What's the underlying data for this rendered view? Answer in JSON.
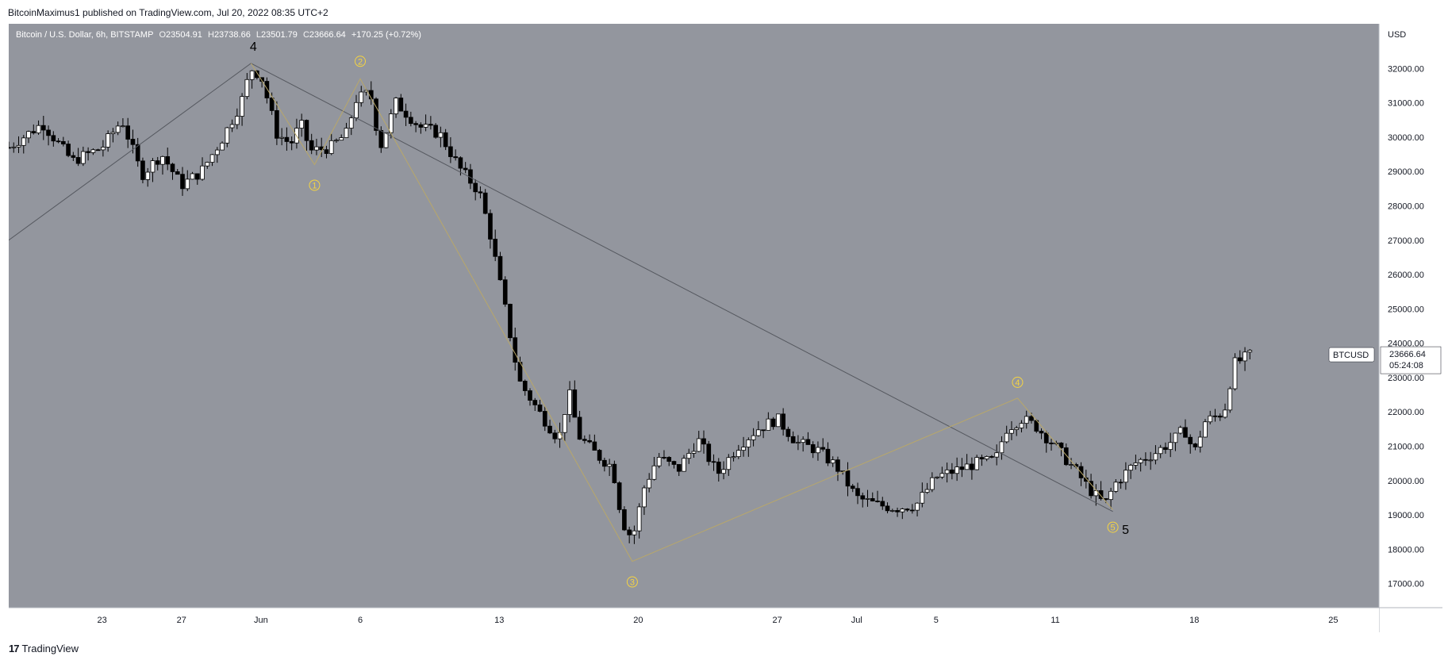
{
  "header": {
    "publish_line": "BitcoinMaximus1 published on TradingView.com, Jul 20, 2022 08:35 UTC+2"
  },
  "legend": {
    "symbol": "Bitcoin / U.S. Dollar, 6h, BITSTAMP",
    "o_label": "O",
    "o_value": "23504.91",
    "h_label": "H",
    "h_value": "23738.66",
    "l_label": "L",
    "l_value": "23501.79",
    "c_label": "C",
    "c_value": "23666.64",
    "change": "+170.25 (+0.72%)"
  },
  "footer": {
    "brand": "TradingView",
    "logo_glyph": "17"
  },
  "colors": {
    "plot_bg": "#93969e",
    "candle_up": "#ffffff",
    "candle_down": "#000000",
    "wave_line_gray": "#55585f",
    "wave_line_yellow": "#b8a76a",
    "wave_marker": "#f5d442",
    "axis_bg": "#ffffff"
  },
  "chart_data": {
    "type": "candlestick",
    "symbol": "Bitcoin / U.S. Dollar",
    "interval": "6h",
    "exchange": "BITSTAMP",
    "currency_label": "USD",
    "y_ticks": [
      17000,
      18000,
      19000,
      20000,
      21000,
      22000,
      23000,
      24000,
      25000,
      26000,
      27000,
      28000,
      29000,
      30000,
      31000,
      32000
    ],
    "y_tick_labels": [
      "17000.00",
      "18000.00",
      "19000.00",
      "20000.00",
      "21000.00",
      "22000.00",
      "23000.00",
      "24000.00",
      "25000.00",
      "26000.00",
      "27000.00",
      "28000.00",
      "29000.00",
      "30000.00",
      "31000.00",
      "32000.00"
    ],
    "ylim": [
      16300,
      33300
    ],
    "x_range_days": [
      -12.7,
      56.3
    ],
    "x_ticks": [
      {
        "day": -8,
        "label": "23"
      },
      {
        "day": -4,
        "label": "27"
      },
      {
        "day": 0,
        "label": "Jun"
      },
      {
        "day": 5,
        "label": "6"
      },
      {
        "day": 12,
        "label": "13"
      },
      {
        "day": 19,
        "label": "20"
      },
      {
        "day": 26,
        "label": "27"
      },
      {
        "day": 30,
        "label": "Jul"
      },
      {
        "day": 34,
        "label": "5"
      },
      {
        "day": 40,
        "label": "11"
      },
      {
        "day": 47,
        "label": "18"
      },
      {
        "day": 54,
        "label": "25"
      }
    ],
    "price_tag": {
      "symbol_label": "BTCUSD",
      "price": "23666.64",
      "countdown": "05:24:08",
      "value": 23666.64
    },
    "path_anchors": [
      [
        -12.7,
        29700
      ],
      [
        -11,
        30400
      ],
      [
        -9.5,
        29300
      ],
      [
        -8,
        29700
      ],
      [
        -7,
        30500
      ],
      [
        -6,
        28900
      ],
      [
        -5,
        29500
      ],
      [
        -4,
        28600
      ],
      [
        -3,
        29000
      ],
      [
        -2,
        29900
      ],
      [
        -1,
        31000
      ],
      [
        -0.5,
        32000
      ],
      [
        0,
        31800
      ],
      [
        0.8,
        30100
      ],
      [
        1.5,
        29800
      ],
      [
        2,
        30400
      ],
      [
        2.5,
        29600
      ],
      [
        3.5,
        29700
      ],
      [
        4.3,
        30100
      ],
      [
        4.8,
        31100
      ],
      [
        5.5,
        31300
      ],
      [
        6,
        29700
      ],
      [
        6.8,
        31000
      ],
      [
        8,
        30300
      ],
      [
        9,
        30100
      ],
      [
        10,
        29100
      ],
      [
        11,
        28400
      ],
      [
        11.5,
        27300
      ],
      [
        12.3,
        25000
      ],
      [
        13,
        22900
      ],
      [
        14,
        22000
      ],
      [
        15,
        21200
      ],
      [
        15.5,
        22600
      ],
      [
        16,
        21300
      ],
      [
        17,
        20700
      ],
      [
        17.7,
        20400
      ],
      [
        18.2,
        18800
      ],
      [
        18.7,
        18300
      ],
      [
        19.3,
        19800
      ],
      [
        20,
        20700
      ],
      [
        21,
        20300
      ],
      [
        22,
        21200
      ],
      [
        23,
        20200
      ],
      [
        24,
        21000
      ],
      [
        25,
        21500
      ],
      [
        26,
        21800
      ],
      [
        27,
        21100
      ],
      [
        28,
        20900
      ],
      [
        29,
        20400
      ],
      [
        30,
        19500
      ],
      [
        31,
        19300
      ],
      [
        32,
        19200
      ],
      [
        33,
        19300
      ],
      [
        34,
        20100
      ],
      [
        35,
        20300
      ],
      [
        36,
        20500
      ],
      [
        37,
        20600
      ],
      [
        37.5,
        21500
      ],
      [
        38.3,
        21800
      ],
      [
        39,
        21600
      ],
      [
        40,
        21000
      ],
      [
        41,
        20300
      ],
      [
        41.8,
        19700
      ],
      [
        42.5,
        19300
      ],
      [
        43,
        19900
      ],
      [
        44,
        20500
      ],
      [
        45,
        20800
      ],
      [
        46,
        21200
      ],
      [
        46.5,
        21500
      ],
      [
        47,
        20800
      ],
      [
        47.5,
        21700
      ],
      [
        48.5,
        22000
      ],
      [
        49,
        23400
      ],
      [
        49.8,
        23650
      ]
    ],
    "main_wave": [
      {
        "label": "4",
        "day": -0.5,
        "price": 32150
      },
      {
        "label": "5",
        "day": 42.9,
        "price": 19100
      }
    ],
    "main_wave_start": {
      "day": -12.7,
      "price": 27000
    },
    "sub_wave": [
      {
        "label": "1",
        "day": 2.7,
        "price": 29200
      },
      {
        "label": "2",
        "day": 5.0,
        "price": 31700
      },
      {
        "label": "3",
        "day": 18.7,
        "price": 17650
      },
      {
        "label": "4",
        "day": 38.1,
        "price": 22400
      },
      {
        "label": "5",
        "day": 42.9,
        "price": 19150
      }
    ]
  }
}
